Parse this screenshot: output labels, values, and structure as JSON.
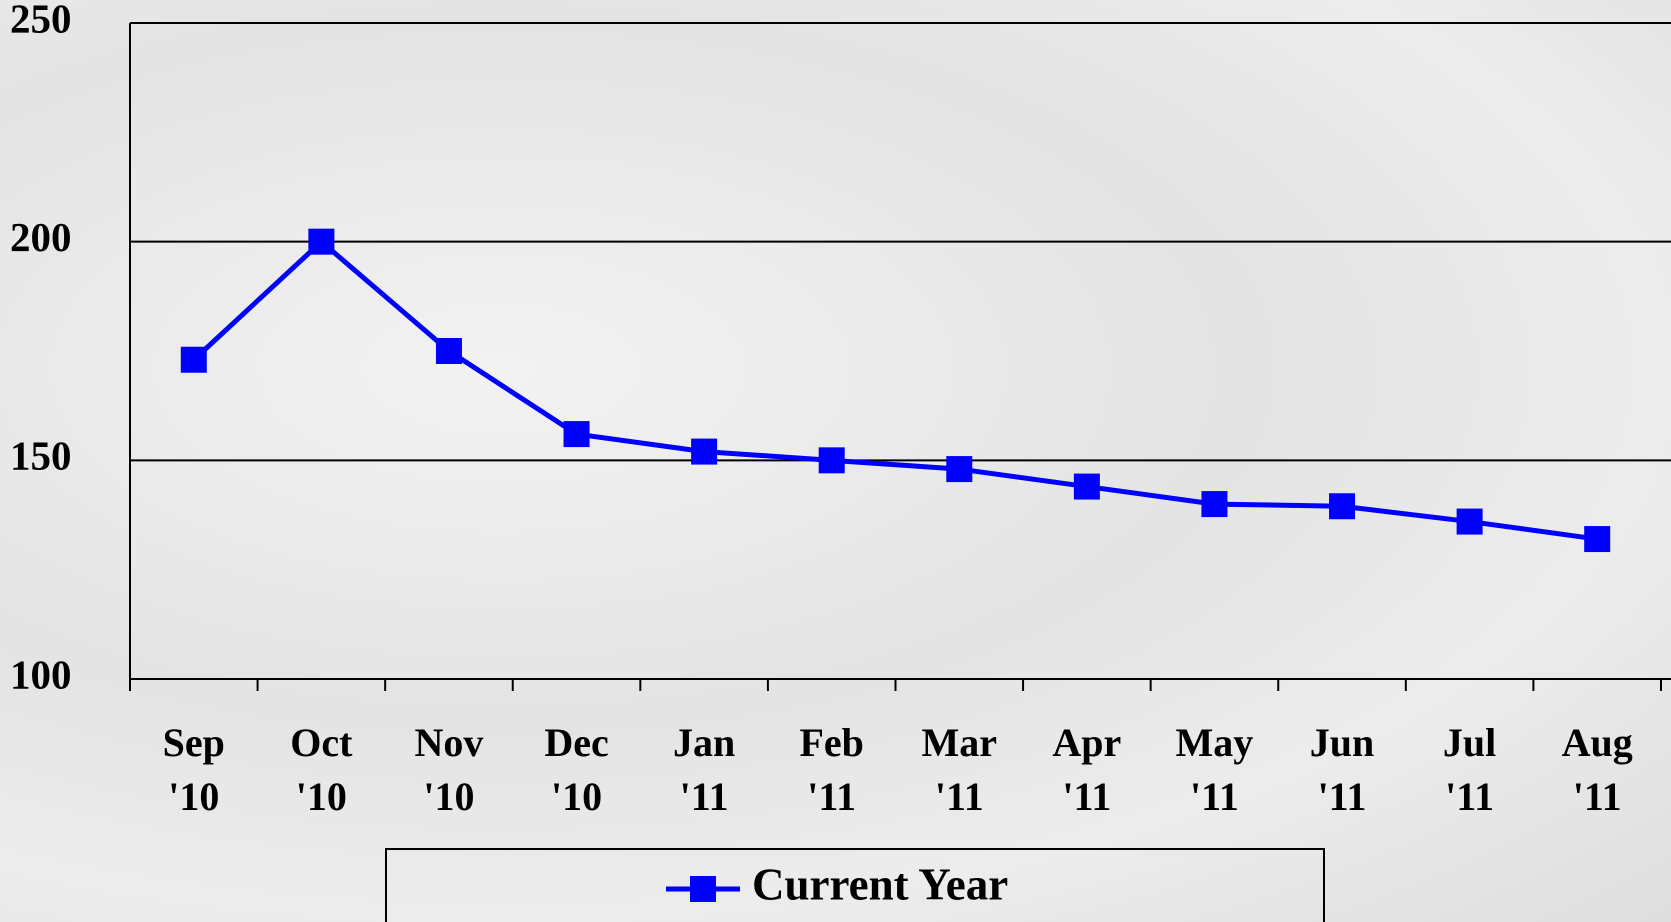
{
  "chart_data": {
    "type": "line",
    "categories": [
      "Sep '10",
      "Oct '10",
      "Nov '10",
      "Dec '10",
      "Jan '11",
      "Feb '11",
      "Mar '11",
      "Apr '11",
      "May '11",
      "Jun '11",
      "Jul '11",
      "Aug '11"
    ],
    "series": [
      {
        "name": "Current Year",
        "color": "#0000ff",
        "values": [
          173,
          200,
          175,
          156,
          152,
          150,
          148,
          144,
          140,
          139.5,
          136,
          132
        ]
      }
    ],
    "ylim": [
      100,
      250
    ],
    "yticks": [
      100,
      150,
      200,
      250
    ],
    "grid": true
  }
}
